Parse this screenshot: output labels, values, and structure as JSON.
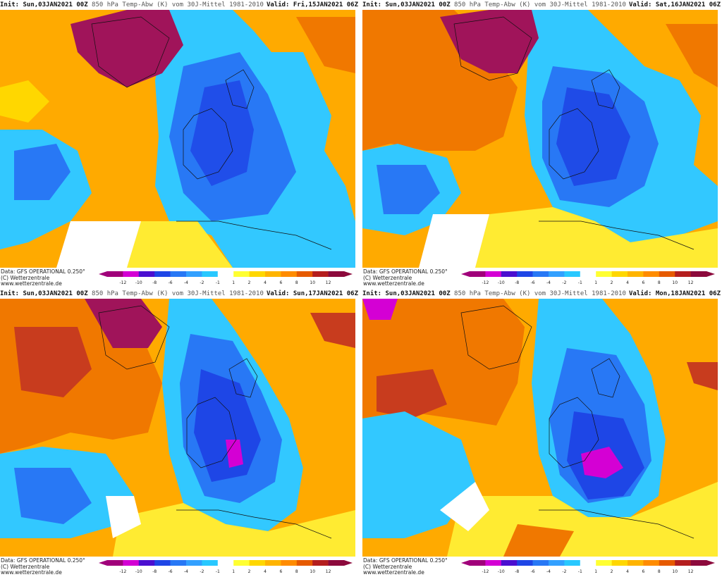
{
  "panels": [
    {
      "init": "Init: Sun,03JAN2021 00Z",
      "desc": "850 hPa Temp-Abw (K) vom 30J-Mittel 1981-2010",
      "valid": "Valid: Fri,15JAN2021 06Z"
    },
    {
      "init": "Init: Sun,03JAN2021 00Z",
      "desc": "850 hPa Temp-Abw (K) vom 30J-Mittel 1981-2010",
      "valid": "Valid: Sat,16JAN2021 06Z"
    },
    {
      "init": "Init: Sun,03JAN2021 00Z",
      "desc": "850 hPa Temp-Abw (K) vom 30J-Mittel 1981-2010",
      "valid": "Valid: Sun,17JAN2021 06Z"
    },
    {
      "init": "Init: Sun,03JAN2021 00Z",
      "desc": "850 hPa Temp-Abw (K) vom 30J-Mittel 1981-2010",
      "valid": "Valid: Mon,18JAN2021 06Z"
    }
  ],
  "footer": {
    "data_source": "Data: GFS OPERATIONAL 0.250°",
    "copyright": "(C) Wetterzentrale",
    "website": "www.wetterzentrale.de"
  },
  "legend": {
    "ticks": [
      "-12",
      "-10",
      "-8",
      "-6",
      "-4",
      "-2",
      "-1",
      "1",
      "2",
      "4",
      "6",
      "8",
      "10",
      "12"
    ],
    "colors": [
      "#a0007a",
      "#d400d4",
      "#4b0fd0",
      "#1e46e6",
      "#2878f5",
      "#32a0ff",
      "#28c8ff",
      "#ffffff",
      "#ffff32",
      "#ffd700",
      "#ffb400",
      "#ff8c00",
      "#e65a00",
      "#b41e1e",
      "#8c0a3c"
    ]
  },
  "colors": {
    "extreme_cold": "#c800c8",
    "cold_deep": "#2846e6",
    "cold": "#3c8cff",
    "cool": "#32c8ff",
    "neutral": "#ffffff",
    "mild": "#ffeb32",
    "warm": "#ffaa00",
    "warmer": "#f07800",
    "hot": "#c83c1e",
    "extreme_warm": "#a0145a"
  }
}
